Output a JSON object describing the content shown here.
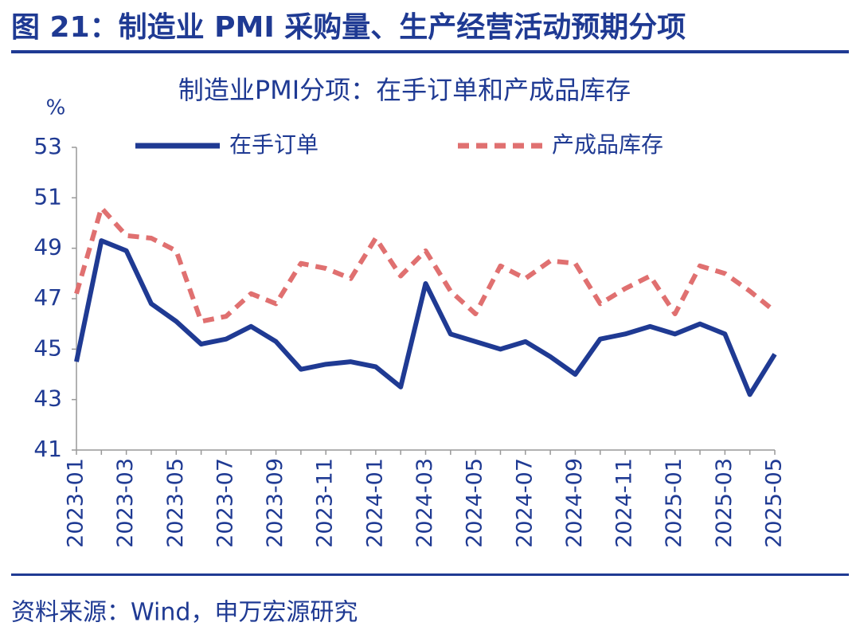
{
  "header": {
    "title": "图 21：制造业 PMI 采购量、生产经营活动预期分项"
  },
  "chart_data": {
    "type": "line",
    "title": "制造业PMI分项：在手订单和产成品库存",
    "y_label": "%",
    "categories": [
      "2023-01",
      null,
      "2023-03",
      null,
      "2023-05",
      null,
      "2023-07",
      null,
      "2023-09",
      null,
      "2023-11",
      null,
      "2024-01",
      null,
      "2024-03",
      null,
      "2024-05",
      null,
      "2024-07",
      null,
      "2024-09",
      null,
      "2024-11",
      null,
      "2025-01",
      null,
      "2025-03",
      null,
      "2025-05"
    ],
    "series": [
      {
        "name": "在手订单",
        "color": "#1f3a93",
        "dash": false,
        "values": [
          44.5,
          49.3,
          48.9,
          46.8,
          46.1,
          45.2,
          45.4,
          45.9,
          45.3,
          44.2,
          44.4,
          44.5,
          44.3,
          43.5,
          47.6,
          45.6,
          45.3,
          45.0,
          45.3,
          44.7,
          44.0,
          45.4,
          45.6,
          45.9,
          45.6,
          46.0,
          45.6,
          43.2,
          44.8
        ]
      },
      {
        "name": "产成品库存",
        "color": "#e07070",
        "dash": true,
        "values": [
          47.2,
          50.6,
          49.5,
          49.4,
          48.9,
          46.1,
          46.3,
          47.2,
          46.8,
          48.4,
          48.2,
          47.8,
          49.4,
          47.9,
          48.9,
          47.3,
          46.4,
          48.3,
          47.8,
          48.5,
          48.4,
          46.8,
          47.4,
          47.9,
          46.4,
          48.3,
          48.0,
          47.3,
          46.5
        ]
      }
    ],
    "ylim": [
      41,
      53
    ],
    "yticks": [
      41,
      43,
      45,
      47,
      49,
      51,
      53
    ]
  },
  "source": "资料来源：Wind，申万宏源研究"
}
